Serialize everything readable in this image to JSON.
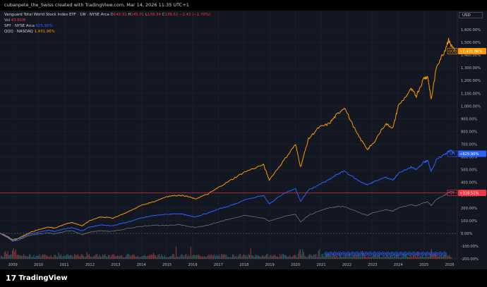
{
  "header": {
    "attribution": "cubanpete_the_Swiss created with TradingView.com, Mar 14, 2026 11:35 UTC+1"
  },
  "legend": {
    "main": {
      "name": "Vanguard Total World Stock Index ETF · 1W · NYSE Arca",
      "o_label": "O",
      "o": "140.31",
      "h_label": "H",
      "h": "145.01",
      "l_label": "L",
      "l": "139.34",
      "c_label": "C",
      "c": "139.52",
      "change": "−2.43 (−1.70%)"
    },
    "vol": {
      "label": "Vol",
      "value": "43.81M"
    },
    "spy": {
      "label": "SPY · NYSE Arca",
      "value": "625.90%"
    },
    "qqq": {
      "label": "QQQ · NASDAQ",
      "value": "1,431.96%"
    }
  },
  "currency": "USD",
  "branding": {
    "mark": "17",
    "name": "TradingView"
  },
  "colors": {
    "background": "#131722",
    "grid": "#1e222d",
    "text": "#b2b5be",
    "qqq": "#ff9800",
    "spy": "#2962ff",
    "vt": "#787b86",
    "vt_label": "#f23645",
    "vol_up": "#26a69a",
    "vol_down": "#ef5350"
  },
  "chart_data": {
    "type": "line",
    "ylabel_unit": "%",
    "ylim": [
      -200,
      1650
    ],
    "y_ticks": [
      "-200.00%",
      "-100.00%",
      "0.00%",
      "100.00%",
      "200.00%",
      "300.00%",
      "400.00%",
      "500.00%",
      "600.00%",
      "700.00%",
      "800.00%",
      "900.00%",
      "1,000.00%",
      "1,100.00%",
      "1,200.00%",
      "1,300.00%",
      "1,400.00%",
      "1,500.00%",
      "1,600.00%"
    ],
    "y_tick_values": [
      -200,
      -100,
      0,
      100,
      200,
      300,
      400,
      500,
      600,
      700,
      800,
      900,
      1000,
      1100,
      1200,
      1300,
      1400,
      1500,
      1600
    ],
    "x_ticks": [
      "2009",
      "2010",
      "2011",
      "2012",
      "2013",
      "2014",
      "2015",
      "2016",
      "2017",
      "2018",
      "2019",
      "2020",
      "2021",
      "2022",
      "2023",
      "2024",
      "2025",
      "2026"
    ],
    "x_tick_values": [
      2009,
      2010,
      2011,
      2012,
      2013,
      2014,
      2015,
      2016,
      2017,
      2018,
      2019,
      2020,
      2021,
      2022,
      2023,
      2024,
      2025,
      2026
    ],
    "xlim": [
      2008.5,
      2026.3
    ],
    "series": [
      {
        "name": "QQQ",
        "badge": "QQQ",
        "last_label": "+1,431.96%",
        "x": [
          2008.5,
          2008.75,
          2009.0,
          2009.2,
          2009.6,
          2010.0,
          2010.4,
          2010.6,
          2011.0,
          2011.3,
          2011.7,
          2012.0,
          2012.4,
          2012.9,
          2013.5,
          2014.0,
          2014.5,
          2015.0,
          2015.5,
          2015.8,
          2016.1,
          2016.6,
          2017.0,
          2017.5,
          2018.0,
          2018.75,
          2018.98,
          2019.5,
          2020.0,
          2020.2,
          2020.5,
          2020.9,
          2021.3,
          2021.6,
          2021.9,
          2022.4,
          2022.8,
          2023.0,
          2023.5,
          2023.8,
          2024.0,
          2024.5,
          2024.7,
          2025.0,
          2025.15,
          2025.28,
          2025.5,
          2025.8,
          2025.95,
          2026.05,
          2026.2
        ],
        "y": [
          0,
          -20,
          -50,
          -40,
          0,
          30,
          50,
          40,
          70,
          85,
          60,
          100,
          130,
          120,
          170,
          220,
          250,
          290,
          300,
          290,
          270,
          310,
          360,
          420,
          480,
          540,
          420,
          560,
          700,
          520,
          740,
          830,
          860,
          930,
          990,
          780,
          660,
          700,
          860,
          830,
          1000,
          1130,
          1080,
          1220,
          1230,
          1050,
          1320,
          1430,
          1520,
          1480,
          1431
        ]
      },
      {
        "name": "SPY",
        "badge": "SPY",
        "last_label": "+625.90%",
        "x": [
          2008.5,
          2008.75,
          2009.0,
          2009.2,
          2009.6,
          2010.0,
          2010.4,
          2010.6,
          2011.0,
          2011.3,
          2011.7,
          2012.0,
          2012.4,
          2012.9,
          2013.5,
          2014.0,
          2014.5,
          2015.0,
          2015.5,
          2015.8,
          2016.1,
          2016.6,
          2017.0,
          2017.5,
          2018.0,
          2018.75,
          2018.98,
          2019.5,
          2020.0,
          2020.2,
          2020.5,
          2020.9,
          2021.3,
          2021.6,
          2021.9,
          2022.4,
          2022.8,
          2023.0,
          2023.5,
          2023.8,
          2024.0,
          2024.5,
          2024.7,
          2025.0,
          2025.15,
          2025.28,
          2025.5,
          2025.8,
          2025.95,
          2026.05,
          2026.2
        ],
        "y": [
          0,
          -25,
          -55,
          -45,
          -10,
          10,
          25,
          15,
          35,
          45,
          20,
          50,
          65,
          60,
          90,
          120,
          140,
          150,
          155,
          140,
          130,
          160,
          190,
          220,
          260,
          300,
          230,
          310,
          350,
          250,
          340,
          380,
          420,
          460,
          490,
          420,
          380,
          400,
          440,
          420,
          470,
          520,
          500,
          560,
          570,
          490,
          580,
          620,
          640,
          650,
          625
        ]
      },
      {
        "name": "VT",
        "badge": "VT",
        "last_label": "+318.51%",
        "x": [
          2008.5,
          2008.75,
          2009.0,
          2009.2,
          2009.6,
          2010.0,
          2010.4,
          2010.6,
          2011.0,
          2011.3,
          2011.7,
          2012.0,
          2012.4,
          2012.9,
          2013.5,
          2014.0,
          2014.5,
          2015.0,
          2015.5,
          2015.8,
          2016.1,
          2016.6,
          2017.0,
          2017.5,
          2018.0,
          2018.75,
          2018.98,
          2019.5,
          2020.0,
          2020.2,
          2020.5,
          2020.9,
          2021.3,
          2021.6,
          2021.9,
          2022.4,
          2022.8,
          2023.0,
          2023.5,
          2023.8,
          2024.0,
          2024.5,
          2024.7,
          2025.0,
          2025.15,
          2025.28,
          2025.5,
          2025.8,
          2025.95,
          2026.05,
          2026.2
        ],
        "y": [
          0,
          -30,
          -60,
          -55,
          -20,
          -5,
          5,
          -5,
          15,
          20,
          -10,
          10,
          20,
          15,
          40,
          55,
          65,
          60,
          70,
          55,
          45,
          65,
          90,
          115,
          140,
          120,
          95,
          130,
          150,
          90,
          140,
          175,
          200,
          210,
          210,
          170,
          140,
          160,
          185,
          175,
          200,
          225,
          215,
          240,
          245,
          220,
          270,
          300,
          320,
          330,
          318
        ]
      }
    ],
    "volume": {
      "name": "Vol",
      "unit": "M"
    }
  }
}
